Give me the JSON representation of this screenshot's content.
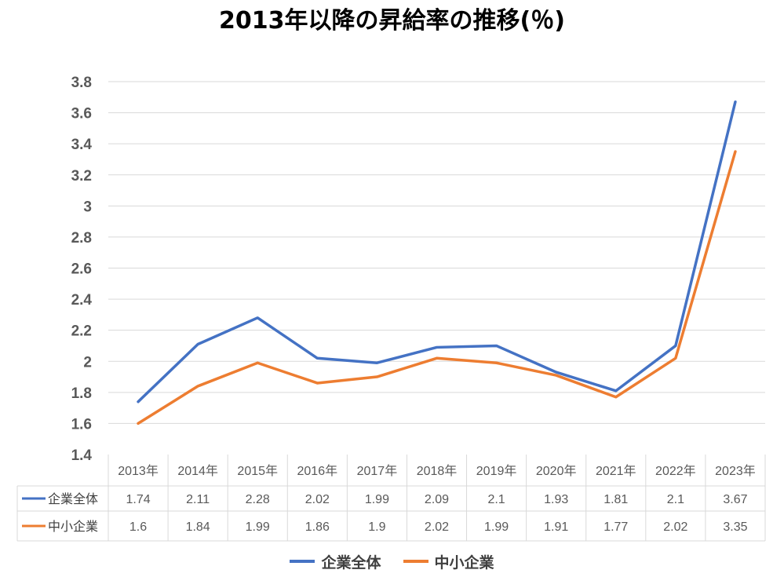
{
  "chart_data": {
    "type": "line",
    "title": "2013年以降の昇給率の推移(％)",
    "categories": [
      "2013年",
      "2014年",
      "2015年",
      "2016年",
      "2017年",
      "2018年",
      "2019年",
      "2020年",
      "2021年",
      "2022年",
      "2023年"
    ],
    "series": [
      {
        "name": "企業全体",
        "color": "#4472C4",
        "values": [
          1.74,
          2.11,
          2.28,
          2.02,
          1.99,
          2.09,
          2.1,
          1.93,
          1.81,
          2.1,
          3.67
        ]
      },
      {
        "name": "中小企業",
        "color": "#ED7D31",
        "values": [
          1.6,
          1.84,
          1.99,
          1.86,
          1.9,
          2.02,
          1.99,
          1.91,
          1.77,
          2.02,
          3.35
        ]
      }
    ],
    "ylim": [
      1.4,
      3.8
    ],
    "yticks": [
      "1.4",
      "1.6",
      "1.8",
      "2",
      "2.2",
      "2.4",
      "2.6",
      "2.8",
      "3",
      "3.2",
      "3.4",
      "3.6",
      "3.8"
    ],
    "data_table": true,
    "grid": true,
    "legend": "bottom"
  }
}
